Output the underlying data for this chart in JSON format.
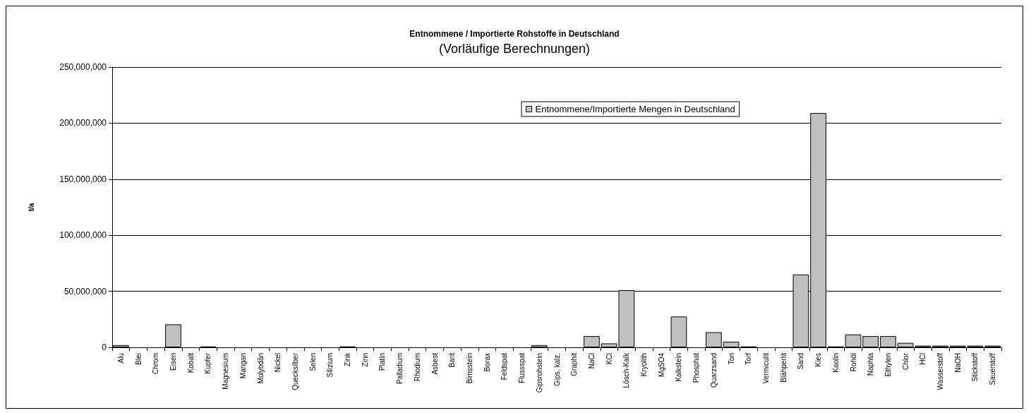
{
  "chart_data": {
    "type": "bar",
    "title": "Entnommene / Importierte Rohstoffe in Deutschland",
    "subtitle": "(Vorläufige Berechnungen)",
    "ylabel": "t/a",
    "categories": [
      "Alu",
      "Blei",
      "Chrom",
      "Eisen",
      "Kobalt",
      "Kupfer",
      "Magnesium",
      "Mangan",
      "Molybdän",
      "Nickel",
      "Quecksilber",
      "Selen",
      "Silizium",
      "Zink",
      "Zinn",
      "Platin",
      "Palladium",
      "Rhodium",
      "Asbest",
      "Barit",
      "Bimsstein",
      "Borax",
      "Feldspat",
      "Flussspat",
      "Gipsrohstein",
      "Gips, kalz.",
      "Graphit",
      "NaCl",
      "KCl",
      "Lösch-Kalk",
      "Kryolith",
      "MgSO4",
      "Kalkstein",
      "Phosphat",
      "Quarzsand",
      "Ton",
      "Torf",
      "Vermiculit",
      "Blähperlit",
      "Sand",
      "Kies",
      "Kaolin",
      "Rohöl",
      "Naphta",
      "Ethylen",
      "Chlor",
      "HCl",
      "Wasserstoff",
      "NaOH",
      "Stickstoff",
      "Sauerstoff"
    ],
    "series": [
      {
        "name": "Entnommene/Importierte Mengen in Deutschland",
        "color": "#c0c0c0",
        "values": [
          2000000,
          0,
          0,
          20500000,
          0,
          800000,
          0,
          0,
          0,
          0,
          0,
          0,
          0,
          800000,
          0,
          0,
          0,
          0,
          0,
          0,
          0,
          0,
          0,
          0,
          2000000,
          0,
          0,
          10000000,
          3500000,
          51000000,
          0,
          0,
          27500000,
          0,
          13500000,
          5000000,
          800000,
          0,
          0,
          65000000,
          209000000,
          800000,
          11500000,
          10000000,
          10000000,
          4000000,
          1500000,
          1500000,
          1500000,
          1500000,
          1500000
        ]
      }
    ],
    "ylim": [
      0,
      250000000
    ],
    "yticks": [
      0,
      {
        "value": 50000000,
        "label": "50,000,000"
      },
      {
        "value": 100000000,
        "label": "100,000,000"
      },
      {
        "value": 150000000,
        "label": "150,000,000"
      },
      {
        "value": 200000000,
        "label": "200,000,000"
      },
      {
        "value": 250000000,
        "label": "250,000,000"
      }
    ],
    "grid": "y",
    "legend": "top"
  }
}
